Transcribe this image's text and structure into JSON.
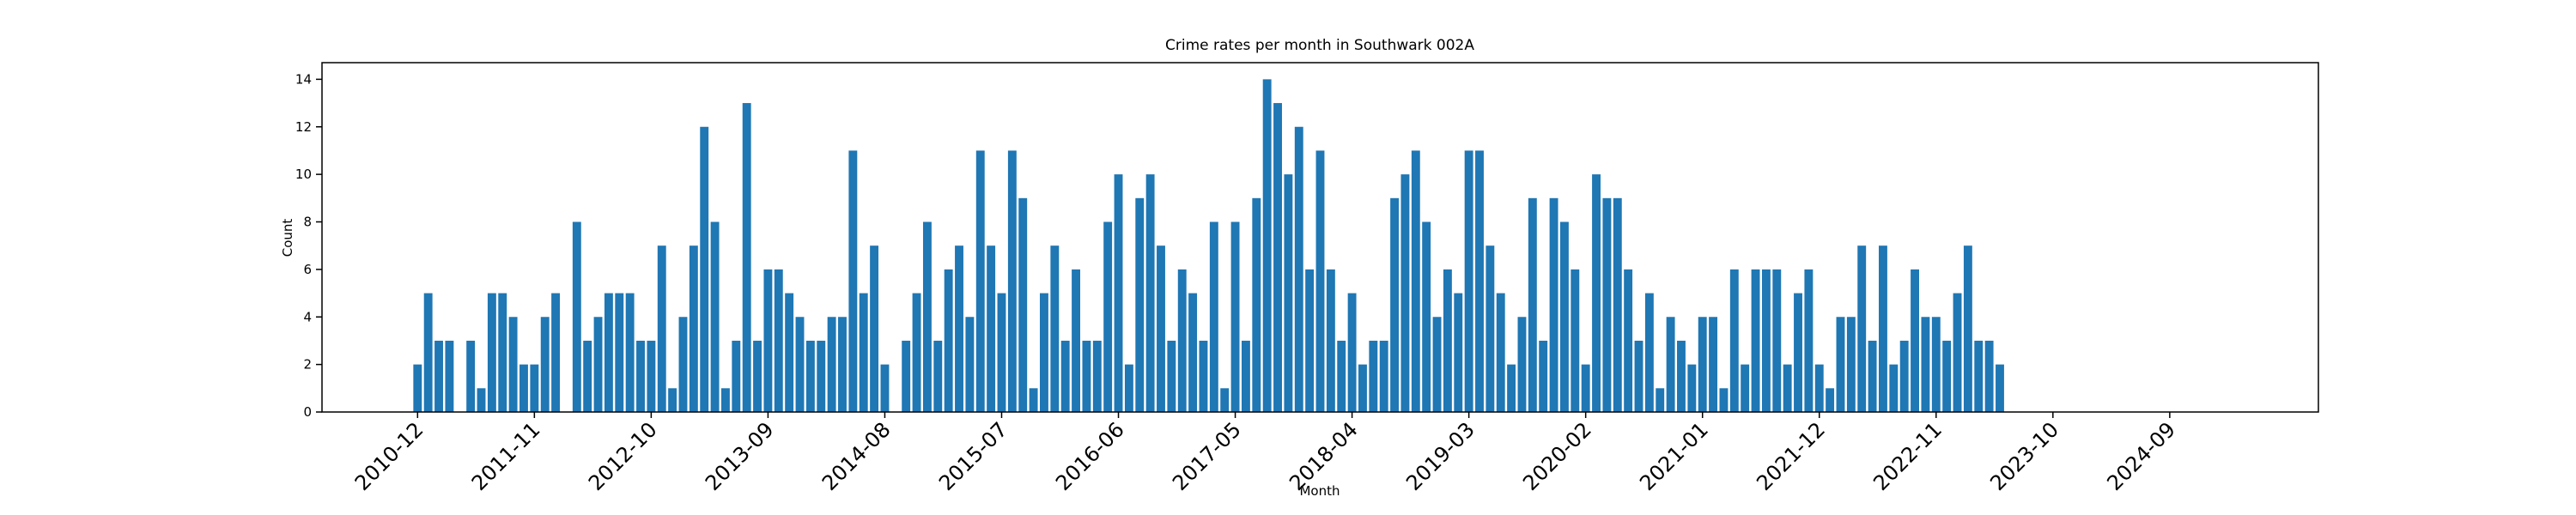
{
  "chart_data": {
    "type": "bar",
    "title": "Crime rates per month in Southwark 002A",
    "xlabel": "Month",
    "ylabel": "Count",
    "color": "#1f77b4",
    "x": [
      "2010-12",
      "2011-01",
      "2011-02",
      "2011-03",
      "2011-04",
      "2011-05",
      "2011-06",
      "2011-07",
      "2011-08",
      "2011-09",
      "2011-10",
      "2011-11",
      "2011-12",
      "2012-01",
      "2012-02",
      "2012-03",
      "2012-04",
      "2012-05",
      "2012-06",
      "2012-07",
      "2012-08",
      "2012-09",
      "2012-10",
      "2012-11",
      "2012-12",
      "2013-01",
      "2013-02",
      "2013-03",
      "2013-04",
      "2013-05",
      "2013-06",
      "2013-07",
      "2013-08",
      "2013-09",
      "2013-10",
      "2013-11",
      "2013-12",
      "2014-01",
      "2014-02",
      "2014-03",
      "2014-04",
      "2014-05",
      "2014-06",
      "2014-07",
      "2014-08",
      "2014-09",
      "2014-10",
      "2014-11",
      "2014-12",
      "2015-01",
      "2015-02",
      "2015-03",
      "2015-04",
      "2015-05",
      "2015-06",
      "2015-07",
      "2015-08",
      "2015-09",
      "2015-10",
      "2015-11",
      "2015-12",
      "2016-01",
      "2016-02",
      "2016-03",
      "2016-04",
      "2016-05",
      "2016-06",
      "2016-07",
      "2016-08",
      "2016-09",
      "2016-10",
      "2016-11",
      "2016-12",
      "2017-01",
      "2017-02",
      "2017-03",
      "2017-04",
      "2017-05",
      "2017-06",
      "2017-07",
      "2017-08",
      "2017-09",
      "2017-10",
      "2017-11",
      "2017-12",
      "2018-01",
      "2018-02",
      "2018-03",
      "2018-04",
      "2018-05",
      "2018-06",
      "2018-07",
      "2018-08",
      "2018-09",
      "2018-10",
      "2018-11",
      "2018-12",
      "2019-01",
      "2019-02",
      "2019-03",
      "2019-04",
      "2019-05",
      "2019-06",
      "2019-07",
      "2019-08",
      "2019-09",
      "2019-10",
      "2019-11",
      "2019-12",
      "2020-01",
      "2020-02",
      "2020-03",
      "2020-04",
      "2020-05",
      "2020-06",
      "2020-07",
      "2020-08",
      "2020-09",
      "2020-10",
      "2020-11",
      "2020-12",
      "2021-01",
      "2021-02",
      "2021-03",
      "2021-04",
      "2021-05",
      "2021-06",
      "2021-07",
      "2021-08",
      "2021-09",
      "2021-10",
      "2021-11",
      "2021-12",
      "2022-01",
      "2022-02",
      "2022-03",
      "2022-04",
      "2022-05",
      "2022-06",
      "2022-07",
      "2022-08",
      "2022-09",
      "2022-10",
      "2022-11",
      "2022-12",
      "2023-01",
      "2023-02",
      "2023-03",
      "2023-04",
      "2023-05"
    ],
    "values": [
      2,
      5,
      3,
      3,
      0,
      3,
      1,
      5,
      5,
      4,
      2,
      2,
      4,
      5,
      0,
      8,
      3,
      4,
      5,
      5,
      5,
      3,
      3,
      7,
      1,
      4,
      7,
      12,
      8,
      1,
      3,
      13,
      3,
      6,
      6,
      5,
      4,
      3,
      3,
      4,
      4,
      11,
      5,
      7,
      2,
      0,
      3,
      5,
      8,
      3,
      6,
      7,
      4,
      11,
      7,
      5,
      11,
      9,
      1,
      5,
      7,
      3,
      6,
      3,
      3,
      8,
      10,
      2,
      9,
      10,
      7,
      3,
      6,
      5,
      3,
      8,
      1,
      8,
      3,
      9,
      14,
      13,
      10,
      12,
      6,
      11,
      6,
      3,
      5,
      2,
      3,
      3,
      9,
      10,
      11,
      8,
      4,
      6,
      5,
      11,
      11,
      7,
      5,
      2,
      4,
      9,
      3,
      9,
      8,
      6,
      2,
      10,
      9,
      9,
      6,
      3,
      5,
      1,
      4,
      3,
      2,
      4,
      4,
      1,
      6,
      2,
      6,
      6,
      6,
      2,
      5,
      6,
      2,
      1,
      4,
      4,
      7,
      3,
      7,
      2,
      3,
      6,
      4,
      4,
      3,
      5,
      7,
      3,
      3,
      2
    ],
    "xlim": [
      "2010-03",
      "2025-11"
    ],
    "xticks": [
      "2010-12",
      "2011-11",
      "2012-10",
      "2013-09",
      "2014-08",
      "2015-07",
      "2016-06",
      "2017-05",
      "2018-04",
      "2019-03",
      "2020-02",
      "2021-01",
      "2021-12",
      "2022-11",
      "2023-10",
      "2024-09"
    ],
    "ylim": [
      0,
      14.7
    ],
    "yticks": [
      0,
      2,
      4,
      6,
      8,
      10,
      12,
      14
    ]
  }
}
